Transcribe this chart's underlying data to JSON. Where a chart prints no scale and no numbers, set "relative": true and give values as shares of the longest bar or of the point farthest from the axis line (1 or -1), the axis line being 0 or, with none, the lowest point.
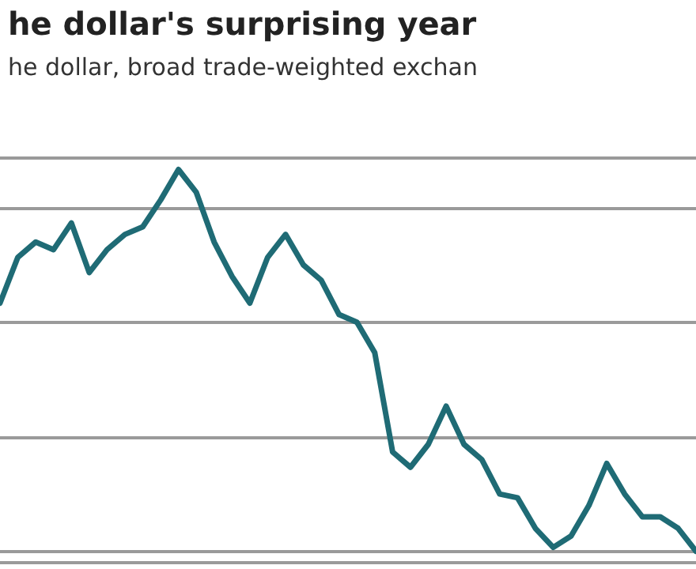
{
  "chart_data": {
    "type": "line",
    "title": "he dollar's surprising year",
    "subtitle": "he dollar, broad trade-weighted exchan",
    "relative": true,
    "grid": "y",
    "marker": "none",
    "line_style": "solid",
    "categories": [
      null,
      null,
      null,
      null,
      null,
      null,
      null,
      null,
      null,
      null,
      null,
      null,
      null,
      null,
      null,
      null,
      null,
      null,
      null,
      null,
      null,
      null,
      null,
      null,
      null,
      null,
      null,
      null,
      null,
      null,
      null,
      null,
      null,
      null,
      null,
      null,
      null,
      null,
      null,
      null
    ],
    "series": [
      {
        "color": "#1f6b75",
        "values": [
          0.65,
          0.77,
          0.81,
          0.79,
          0.86,
          0.73,
          0.79,
          0.83,
          0.85,
          0.92,
          1,
          0.94,
          0.81,
          0.72,
          0.65,
          0.77,
          0.83,
          0.75,
          0.71,
          0.62,
          0.6,
          0.52,
          0.26,
          0.22,
          0.28,
          0.38,
          0.28,
          0.24,
          0.15,
          0.14,
          0.06,
          0.01,
          0.04,
          0.12,
          0.23,
          0.15,
          0.09,
          0.09,
          0.06,
          0
        ]
      }
    ]
  }
}
